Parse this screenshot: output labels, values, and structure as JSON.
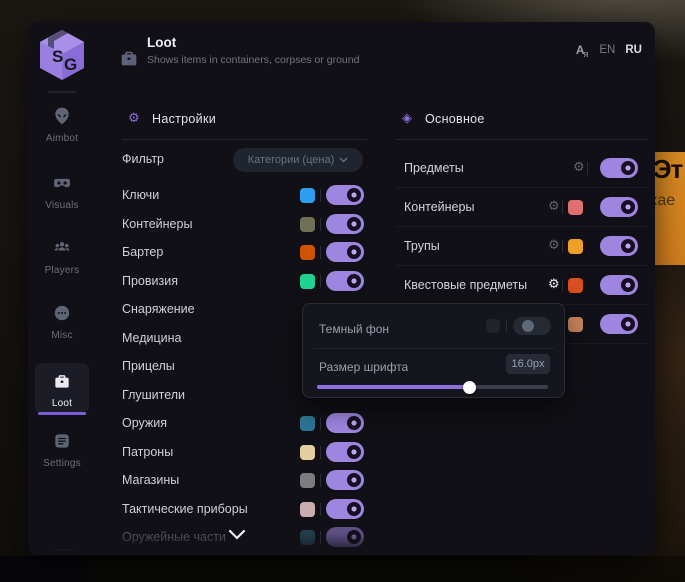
{
  "app": {
    "logo": "SG"
  },
  "header": {
    "title": "Loot",
    "subtitle": "Shows items in containers, corpses or ground",
    "icon": "briefcase-icon"
  },
  "lang": {
    "icon": "translate-icon",
    "en": "EN",
    "ru": "RU",
    "active": "RU"
  },
  "sidebar": {
    "items": [
      {
        "label": "Aimbot",
        "icon": "alien-icon",
        "active": false
      },
      {
        "label": "Visuals",
        "icon": "vr-icon",
        "active": false
      },
      {
        "label": "Players",
        "icon": "players-icon",
        "active": false
      },
      {
        "label": "Misc",
        "icon": "misc-icon",
        "active": false
      },
      {
        "label": "Loot",
        "icon": "briefcase-icon",
        "active": true
      },
      {
        "label": "Settings",
        "icon": "settings-icon",
        "active": false
      }
    ]
  },
  "settings_section": {
    "title": "Настройки",
    "icon": "gear-icon",
    "filter_label": "Фильтр",
    "filter_value": "Категории (цена)",
    "rows": [
      {
        "label": "Ключи",
        "color": "#2f9df2",
        "toggle": true
      },
      {
        "label": "Контейнеры",
        "color": "#716f55",
        "toggle": true
      },
      {
        "label": "Бартер",
        "color": "#cf5400",
        "toggle": true
      },
      {
        "label": "Провизия",
        "color": "#1fd492",
        "toggle": true
      },
      {
        "label": "Снаряжение",
        "color": null,
        "toggle": null
      },
      {
        "label": "Медицина",
        "color": null,
        "toggle": null
      },
      {
        "label": "Прицелы",
        "color": null,
        "toggle": null
      },
      {
        "label": "Глушители",
        "color": null,
        "toggle": null
      },
      {
        "label": "Оружия",
        "color": "#2e7596",
        "toggle": true
      },
      {
        "label": "Патроны",
        "color": "#e4cda1",
        "toggle": true
      },
      {
        "label": "Магазины",
        "color": "#7b7b80",
        "toggle": true
      },
      {
        "label": "Тактические приборы",
        "color": "#c9adb1",
        "toggle": true
      },
      {
        "label": "Оружейные части",
        "color": "#2b4a5c",
        "toggle": true,
        "dimmed": true
      }
    ]
  },
  "main_section": {
    "title": "Основное",
    "icon": "diamond-icon",
    "rows": [
      {
        "label": "Предметы",
        "color": null,
        "toggle": true,
        "gear": true
      },
      {
        "label": "Контейнеры",
        "color": "#e07070",
        "toggle": true,
        "gear": true
      },
      {
        "label": "Трупы",
        "color": "#f0a125",
        "toggle": true,
        "gear": true
      },
      {
        "label": "Квестовые предметы",
        "color": "#d84e1e",
        "toggle": true,
        "gear": true,
        "gear_highlight": true
      },
      {
        "label": "",
        "color": "#c8855c",
        "toggle": true,
        "gear": false
      }
    ]
  },
  "popup": {
    "dark_bg_label": "Темный фон",
    "dark_bg_on": false,
    "font_size_label": "Размер шрифта",
    "font_size_value": "16.0px",
    "slider_percent": 66
  },
  "background": {
    "banner_line1": "Эт",
    "banner_line2": "кае"
  },
  "colors": {
    "accent": "#8d6fe0",
    "toggle_on": "#9e85df"
  }
}
